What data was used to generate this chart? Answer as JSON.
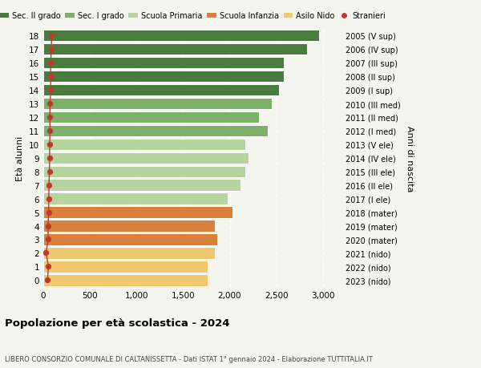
{
  "ages": [
    18,
    17,
    16,
    15,
    14,
    13,
    12,
    11,
    10,
    9,
    8,
    7,
    6,
    5,
    4,
    3,
    2,
    1,
    0
  ],
  "right_labels": [
    "2005 (V sup)",
    "2006 (IV sup)",
    "2007 (III sup)",
    "2008 (II sup)",
    "2009 (I sup)",
    "2010 (III med)",
    "2011 (II med)",
    "2012 (I med)",
    "2013 (V ele)",
    "2014 (IV ele)",
    "2015 (III ele)",
    "2016 (II ele)",
    "2017 (I ele)",
    "2018 (mater)",
    "2019 (mater)",
    "2020 (mater)",
    "2021 (nido)",
    "2022 (nido)",
    "2023 (nido)"
  ],
  "bar_values": [
    2960,
    2830,
    2580,
    2580,
    2530,
    2450,
    2310,
    2410,
    2170,
    2200,
    2170,
    2120,
    1980,
    2030,
    1840,
    1870,
    1840,
    1760,
    1760
  ],
  "stranieri_values": [
    90,
    85,
    80,
    78,
    80,
    72,
    70,
    72,
    68,
    68,
    65,
    62,
    58,
    58,
    50,
    52,
    30,
    55,
    45
  ],
  "bar_colors": [
    "#4a7c3f",
    "#4a7c3f",
    "#4a7c3f",
    "#4a7c3f",
    "#4a7c3f",
    "#7fb069",
    "#7fb069",
    "#7fb069",
    "#b5d4a0",
    "#b5d4a0",
    "#b5d4a0",
    "#b5d4a0",
    "#b5d4a0",
    "#d9813a",
    "#d9813a",
    "#d9813a",
    "#f0c96e",
    "#f0c96e",
    "#f0c96e"
  ],
  "legend_labels": [
    "Sec. II grado",
    "Sec. I grado",
    "Scuola Primaria",
    "Scuola Infanzia",
    "Asilo Nido",
    "Stranieri"
  ],
  "legend_colors": [
    "#4a7c3f",
    "#7fb069",
    "#b5d4a0",
    "#d9813a",
    "#f0c96e",
    "#c0392b"
  ],
  "title": "Popolazione per età scolastica - 2024",
  "subtitle": "LIBERO CONSORZIO COMUNALE DI CALTANISSETTA - Dati ISTAT 1° gennaio 2024 - Elaborazione TUTTITALIA.IT",
  "ylabel_left": "Età alunni",
  "ylabel_right": "Anni di nascita",
  "xlim": [
    0,
    3200
  ],
  "xticks": [
    0,
    500,
    1000,
    1500,
    2000,
    2500,
    3000
  ],
  "xtick_labels": [
    "0",
    "500",
    "1,000",
    "1,500",
    "2,000",
    "2,500",
    "3,000"
  ],
  "bg_color": "#f5f5f0",
  "stranieri_line_color": "#c0392b",
  "stranieri_dot_color": "#c0392b"
}
